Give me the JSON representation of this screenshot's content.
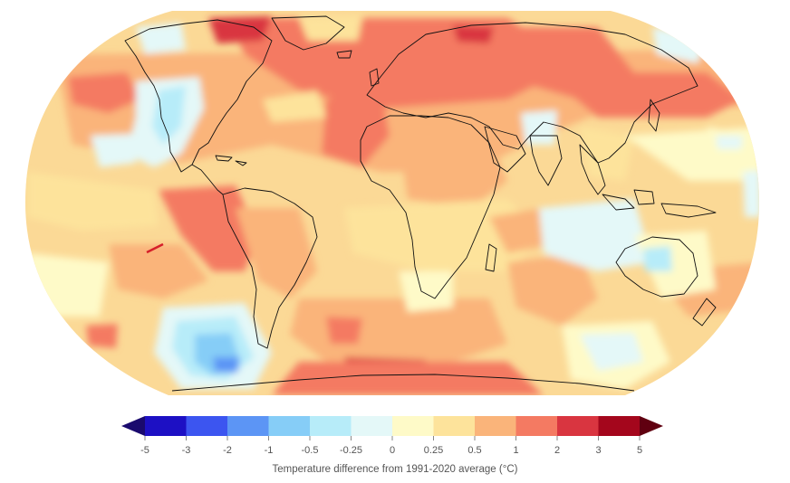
{
  "legend": {
    "title": "Temperature difference from 1991-2020 average (°C)",
    "ticks": [
      "-5",
      "-3",
      "-2",
      "-1",
      "-0.5",
      "-0.25",
      "0",
      "0.25",
      "0.5",
      "1",
      "2",
      "3",
      "5"
    ],
    "colors": [
      "#1d10c4",
      "#3c55f0",
      "#5c95f5",
      "#86cdf7",
      "#b7ecf9",
      "#e4f8f8",
      "#fefac8",
      "#fde39b",
      "#fab47a",
      "#f47a62",
      "#d93540",
      "#a4061c"
    ],
    "under_color": "#1a0a6e",
    "over_color": "#600010"
  },
  "map": {
    "ocean_color": "#fbd996",
    "land_stroke": "#111111",
    "highlight_line_color": "#d6202a"
  }
}
